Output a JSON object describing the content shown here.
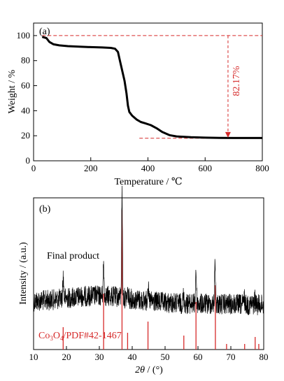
{
  "chart_data": [
    {
      "type": "line",
      "panel_label": "(a)",
      "xlabel": "Temperature / ℃",
      "ylabel": "Weight / %",
      "xlim": [
        0,
        800
      ],
      "ylim": [
        0,
        110
      ],
      "xticks": [
        0,
        200,
        400,
        600,
        800
      ],
      "yticks": [
        0,
        20,
        40,
        60,
        80,
        100
      ],
      "xtick_labels": [
        "0",
        "200",
        "400",
        "600",
        "800"
      ],
      "ytick_labels": [
        "0",
        "20",
        "40",
        "60",
        "80",
        "100"
      ],
      "grid": false,
      "series": [
        {
          "color": "#000000",
          "x": [
            30,
            45,
            55,
            70,
            90,
            120,
            160,
            200,
            240,
            270,
            285,
            295,
            302,
            310,
            318,
            325,
            330,
            335,
            345,
            360,
            375,
            390,
            410,
            430,
            450,
            475,
            500,
            550,
            600,
            650,
            700,
            750,
            800
          ],
          "y": [
            99,
            98,
            95,
            93,
            92.2,
            91.6,
            91.2,
            90.8,
            90.5,
            90.2,
            89.5,
            87,
            80,
            72,
            64,
            54,
            44,
            39,
            36,
            33,
            31,
            30,
            28.5,
            26,
            23,
            20.5,
            19.5,
            18.8,
            18.5,
            18.3,
            18.2,
            18.2,
            18.2
          ]
        }
      ],
      "reference_lines": [
        {
          "orientation": "horizontal",
          "y": 100,
          "x_from": 30,
          "x_to": 800,
          "style": "dashed",
          "color": "#d62a2a"
        },
        {
          "orientation": "horizontal",
          "y": 18,
          "x_from": 370,
          "x_to": 800,
          "style": "dashed",
          "color": "#d62a2a"
        }
      ],
      "annotation": {
        "text": "82.17%",
        "arrow_x": 680,
        "arrow_from_y": 100,
        "arrow_to_y": 18.5,
        "color": "#d62a2a"
      }
    },
    {
      "type": "line",
      "panel_label": "(b)",
      "xlabel": "2θ / (°)",
      "ylabel": "Intensity / (a.u.)",
      "xlim": [
        10,
        80
      ],
      "xticks": [
        10,
        20,
        30,
        40,
        50,
        60,
        70,
        80
      ],
      "xtick_labels": [
        "10",
        "20",
        "30",
        "40",
        "50",
        "60",
        "70",
        "80"
      ],
      "grid": false,
      "series_label": "Final product",
      "peaks": [
        {
          "x": 19.0,
          "height": 0.22
        },
        {
          "x": 31.3,
          "height": 0.3
        },
        {
          "x": 36.9,
          "height": 1.0
        },
        {
          "x": 38.6,
          "height": 0.06
        },
        {
          "x": 44.8,
          "height": 0.16
        },
        {
          "x": 55.6,
          "height": 0.07
        },
        {
          "x": 59.4,
          "height": 0.33
        },
        {
          "x": 65.2,
          "height": 0.4
        },
        {
          "x": 74.1,
          "height": 0.06
        },
        {
          "x": 77.3,
          "height": 0.06
        }
      ],
      "reference": {
        "label": "Co3O4/PDF#42-1467",
        "color": "#d62a2a",
        "lines": [
          {
            "x": 19.0,
            "intensity": 0.16
          },
          {
            "x": 31.3,
            "intensity": 0.4
          },
          {
            "x": 36.9,
            "intensity": 1.0
          },
          {
            "x": 38.6,
            "intensity": 0.12
          },
          {
            "x": 44.8,
            "intensity": 0.2
          },
          {
            "x": 55.7,
            "intensity": 0.1
          },
          {
            "x": 59.4,
            "intensity": 0.34
          },
          {
            "x": 65.3,
            "intensity": 0.46
          },
          {
            "x": 68.7,
            "intensity": 0.04
          },
          {
            "x": 74.2,
            "intensity": 0.04
          },
          {
            "x": 77.4,
            "intensity": 0.09
          },
          {
            "x": 78.5,
            "intensity": 0.04
          }
        ]
      }
    }
  ]
}
